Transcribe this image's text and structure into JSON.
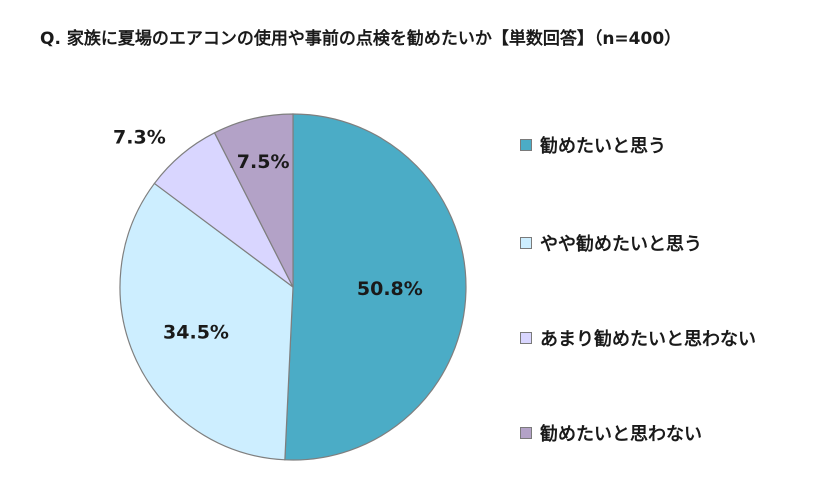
{
  "title": "Q. 家族に夏場のエアコンの使用や事前の点検を勧めたいか【単数回答】（n=400）",
  "chart_data": {
    "type": "pie",
    "categories": [
      "勧めたいと思う",
      "やや勧めたいと思う",
      "あまり勧めたいと思わない",
      "勧めたいと思わない"
    ],
    "values": [
      50.8,
      34.5,
      7.3,
      7.5
    ],
    "value_labels": [
      "50.8%",
      "34.5%",
      "7.3%",
      "7.5%"
    ],
    "colors": [
      "#4bacc6",
      "#cdeeff",
      "#d9d6ff",
      "#b3a2c7"
    ],
    "legend_placement": "right",
    "start": "12 o'clock, clockwise"
  }
}
